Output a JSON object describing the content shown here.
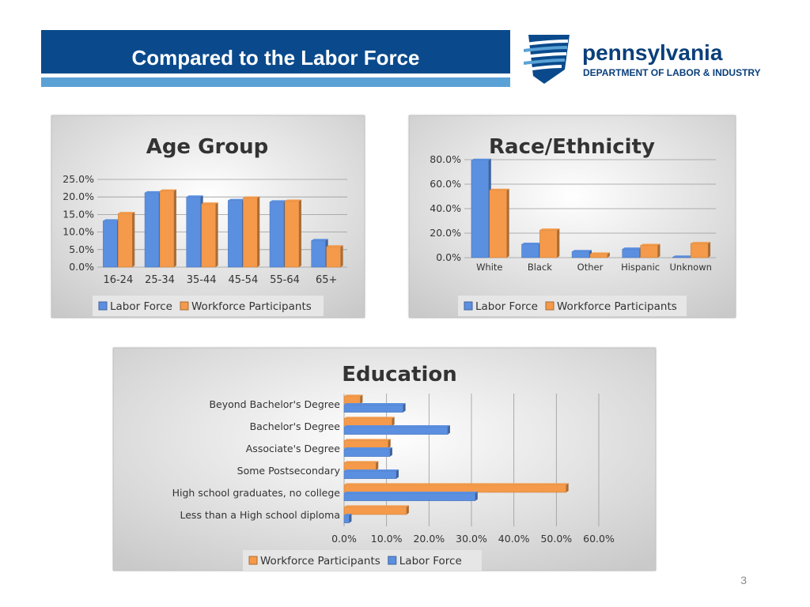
{
  "slide": {
    "title": "Compared to the Labor Force",
    "page_number": "3",
    "logo": {
      "line1": "pennsylvania",
      "line2": "DEPARTMENT OF LABOR & INDUSTRY"
    }
  },
  "colors": {
    "title_bar": "#0a4a8c",
    "stripe": "#5aa2d6",
    "labor_force": "#5b8fe0",
    "workforce_participants": "#f49a4a"
  },
  "chart_data": [
    {
      "type": "bar",
      "title": "Age Group",
      "categories": [
        "16-24",
        "25-34",
        "35-44",
        "45-54",
        "55-64",
        "65+"
      ],
      "series": [
        {
          "name": "Labor Force",
          "values": [
            13.2,
            21.2,
            20.0,
            19.0,
            18.6,
            7.6
          ]
        },
        {
          "name": "Workforce Participants",
          "values": [
            15.3,
            21.7,
            18.0,
            19.7,
            18.8,
            5.8
          ]
        }
      ],
      "ylim": [
        0,
        25
      ],
      "yticks": [
        "0.0%",
        "5.0%",
        "10.0%",
        "15.0%",
        "20.0%",
        "25.0%"
      ],
      "legend": "bottom",
      "grid": true
    },
    {
      "type": "bar",
      "title": "Race/Ethnicity",
      "categories": [
        "White",
        "Black",
        "Other",
        "Hispanic",
        "Unknown"
      ],
      "series": [
        {
          "name": "Labor Force",
          "values": [
            79.5,
            11.0,
            5.0,
            7.0,
            0.5
          ]
        },
        {
          "name": "Workforce Participants",
          "values": [
            55.0,
            22.5,
            3.0,
            10.0,
            11.5
          ]
        }
      ],
      "ylim": [
        0,
        80
      ],
      "yticks": [
        "0.0%",
        "20.0%",
        "40.0%",
        "60.0%",
        "80.0%"
      ],
      "legend": "bottom",
      "grid": true
    },
    {
      "type": "bar",
      "orientation": "horizontal",
      "title": "Education",
      "categories": [
        "Beyond Bachelor's Degree",
        "Bachelor's Degree",
        "Associate's Degree",
        "Some Postsecondary",
        "High school graduates, no college",
        "Less than a High school diploma"
      ],
      "series": [
        {
          "name": "Workforce Participants",
          "values": [
            3.8,
            11.3,
            10.4,
            7.5,
            52.3,
            14.7
          ]
        },
        {
          "name": "Labor Force",
          "values": [
            13.9,
            24.4,
            10.8,
            12.3,
            30.9,
            1.2
          ]
        }
      ],
      "xlim": [
        0,
        60
      ],
      "xticks": [
        "0.0%",
        "10.0%",
        "20.0%",
        "30.0%",
        "40.0%",
        "50.0%",
        "60.0%"
      ],
      "legend": "bottom",
      "grid": true
    }
  ]
}
